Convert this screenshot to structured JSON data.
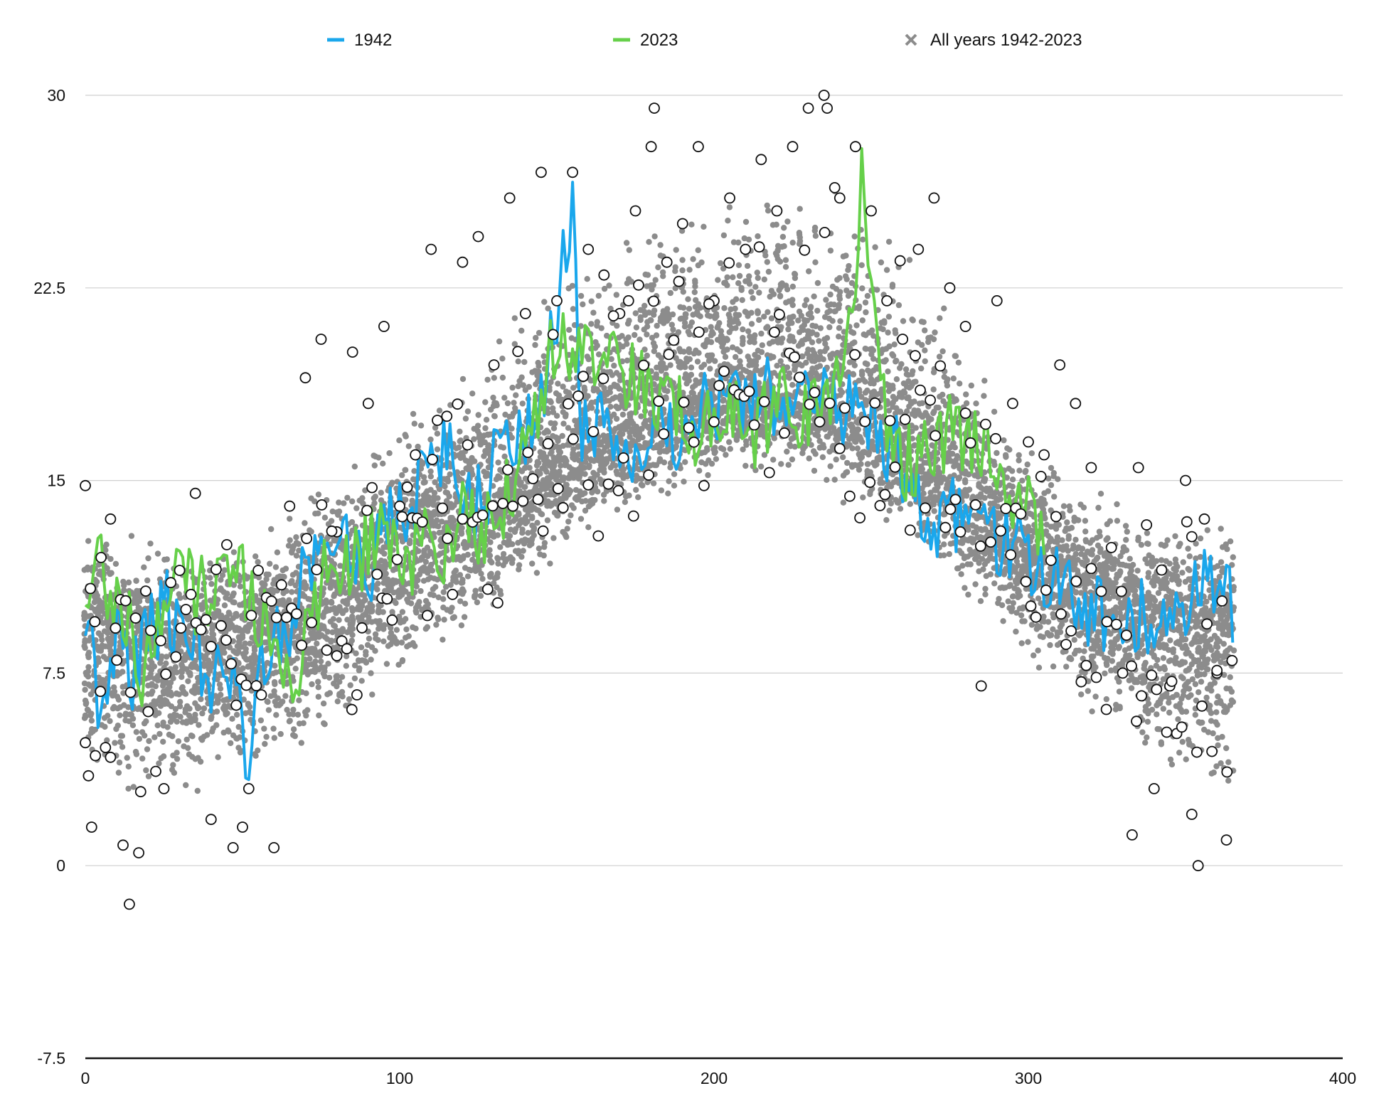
{
  "chart_data": {
    "type": "scatter",
    "title": "",
    "xlabel": "",
    "ylabel": "",
    "xlim": [
      0,
      400
    ],
    "ylim": [
      -7.5,
      30
    ],
    "x_ticks": [
      0,
      100,
      200,
      300,
      400
    ],
    "y_ticks": [
      -7.5,
      0,
      7.5,
      15,
      22.5,
      30
    ],
    "x_tick_labels": [
      "0",
      "100",
      "200",
      "300",
      "400"
    ],
    "y_tick_labels": [
      "-7.5",
      "0",
      "7.5",
      "15",
      "22.5",
      "30"
    ],
    "grid": {
      "horizontal": true,
      "vertical": false
    },
    "legend_position": "top",
    "legend": [
      {
        "label": "1942",
        "marker": "line",
        "color": "#1aa7ec"
      },
      {
        "label": "2023",
        "marker": "line",
        "color": "#66d04a"
      },
      {
        "label": "All years 1942-2023",
        "marker": "x",
        "color": "#8c8c8c"
      }
    ],
    "series": [
      {
        "name": "1942",
        "kind": "line",
        "color": "#1aa7ec",
        "x": [
          0,
          5,
          10,
          15,
          20,
          25,
          30,
          35,
          40,
          45,
          50,
          52,
          55,
          60,
          65,
          70,
          75,
          80,
          85,
          90,
          95,
          100,
          105,
          110,
          115,
          120,
          125,
          130,
          135,
          140,
          145,
          150,
          155,
          158,
          160,
          165,
          170,
          175,
          180,
          185,
          190,
          195,
          200,
          205,
          210,
          215,
          220,
          225,
          230,
          235,
          240,
          245,
          250,
          255,
          260,
          265,
          270,
          275,
          280,
          285,
          290,
          295,
          300,
          305,
          310,
          315,
          320,
          325,
          330,
          335,
          340,
          345,
          350,
          355,
          360,
          365
        ],
        "y": [
          10.0,
          6.0,
          9.0,
          7.5,
          9.0,
          10.0,
          9.5,
          8.5,
          7.5,
          8.0,
          6.5,
          3.0,
          7.5,
          9.0,
          8.5,
          12.0,
          11.5,
          13.0,
          12.5,
          11.0,
          13.0,
          13.5,
          14.5,
          15.5,
          16.0,
          15.0,
          14.0,
          15.5,
          16.5,
          17.0,
          18.5,
          21.0,
          26.5,
          17.0,
          16.5,
          17.0,
          16.5,
          16.0,
          17.5,
          16.5,
          17.0,
          17.5,
          18.0,
          18.0,
          18.5,
          19.0,
          17.0,
          17.0,
          18.5,
          18.0,
          17.5,
          17.5,
          17.0,
          16.5,
          15.5,
          14.5,
          13.5,
          14.0,
          13.5,
          13.0,
          13.0,
          12.5,
          12.0,
          11.0,
          11.0,
          10.5,
          10.0,
          9.5,
          9.0,
          9.5,
          10.0,
          10.5,
          10.0,
          11.0,
          10.5,
          10.0
        ]
      },
      {
        "name": "2023",
        "kind": "line",
        "color": "#66d04a",
        "x": [
          0,
          5,
          10,
          15,
          18,
          20,
          25,
          30,
          35,
          40,
          45,
          50,
          55,
          60,
          65,
          68,
          70,
          75,
          80,
          85,
          90,
          95,
          100,
          105,
          110,
          115,
          120,
          125,
          130,
          135,
          140,
          145,
          150,
          155,
          160,
          165,
          170,
          175,
          180,
          185,
          190,
          195,
          200,
          205,
          210,
          215,
          220,
          225,
          230,
          235,
          240,
          245,
          247,
          250,
          255,
          260,
          265,
          270,
          275,
          280,
          285,
          290,
          295,
          300,
          305
        ],
        "y": [
          11.0,
          12.0,
          10.0,
          9.5,
          6.0,
          8.5,
          10.5,
          11.5,
          10.5,
          11.0,
          12.0,
          11.0,
          10.0,
          9.0,
          8.0,
          5.5,
          9.5,
          11.0,
          11.5,
          12.0,
          12.5,
          13.0,
          12.5,
          12.0,
          13.0,
          12.0,
          13.5,
          13.0,
          14.0,
          14.5,
          16.0,
          18.0,
          21.0,
          20.0,
          19.5,
          19.5,
          19.0,
          19.0,
          18.0,
          17.5,
          17.5,
          17.0,
          18.0,
          17.5,
          17.0,
          17.0,
          18.5,
          17.5,
          17.5,
          18.5,
          19.0,
          21.0,
          27.0,
          22.0,
          17.0,
          15.5,
          16.0,
          16.5,
          17.0,
          17.0,
          16.0,
          15.5,
          14.5,
          14.0,
          13.5
        ]
      },
      {
        "name": "All years 1942-2023",
        "kind": "scatter-cloud",
        "color": "#8c8c8c",
        "x": [
          0,
          20,
          40,
          60,
          80,
          100,
          120,
          140,
          160,
          180,
          200,
          220,
          240,
          260,
          280,
          300,
          320,
          340,
          365
        ],
        "y_low": [
          2.0,
          2.0,
          2.5,
          3.0,
          4.5,
          6.5,
          8.0,
          10.0,
          12.0,
          13.5,
          14.5,
          15.0,
          14.0,
          12.5,
          10.0,
          7.5,
          5.5,
          3.0,
          1.5
        ],
        "y_high": [
          13.5,
          13.0,
          12.5,
          13.5,
          16.0,
          18.0,
          20.0,
          22.5,
          24.0,
          26.0,
          27.0,
          28.0,
          27.0,
          25.0,
          21.0,
          17.5,
          15.0,
          14.0,
          13.5
        ],
        "y_mean": [
          9.0,
          8.5,
          8.5,
          9.0,
          10.5,
          12.0,
          13.5,
          15.0,
          16.5,
          17.5,
          18.5,
          18.5,
          18.0,
          16.5,
          14.5,
          12.0,
          10.5,
          9.5,
          9.0
        ]
      },
      {
        "name": "",
        "kind": "open-circles",
        "color": "#111111",
        "x": [
          0,
          1,
          2,
          3,
          5,
          8,
          10,
          12,
          14,
          17,
          20,
          25,
          30,
          35,
          40,
          45,
          47,
          50,
          52,
          55,
          60,
          65,
          70,
          75,
          80,
          85,
          90,
          95,
          100,
          105,
          110,
          115,
          120,
          125,
          130,
          135,
          140,
          145,
          150,
          155,
          160,
          165,
          170,
          175,
          180,
          181,
          185,
          190,
          195,
          200,
          205,
          210,
          215,
          220,
          225,
          230,
          235,
          236,
          240,
          245,
          250,
          255,
          260,
          265,
          270,
          275,
          280,
          285,
          290,
          295,
          300,
          305,
          310,
          315,
          320,
          325,
          330,
          333,
          335,
          340,
          345,
          350,
          352,
          354,
          356,
          360,
          363
        ],
        "y": [
          14.8,
          3.5,
          1.5,
          9.5,
          12.0,
          13.5,
          8.0,
          0.8,
          -1.5,
          0.5,
          6.0,
          3.0,
          11.5,
          14.5,
          1.8,
          12.5,
          0.7,
          1.5,
          3.0,
          11.5,
          0.7,
          14.0,
          19.0,
          20.5,
          13.0,
          20.0,
          18.0,
          21.0,
          14.0,
          16.0,
          24.0,
          17.5,
          23.5,
          24.5,
          19.5,
          26.0,
          21.5,
          27.0,
          22.0,
          27.0,
          24.0,
          23.0,
          21.5,
          25.5,
          28.0,
          29.5,
          23.5,
          25.0,
          28.0,
          22.0,
          26.0,
          24.0,
          27.5,
          25.5,
          28.0,
          29.5,
          30.0,
          29.5,
          26.0,
          28.0,
          25.5,
          22.0,
          20.5,
          24.0,
          26.0,
          22.5,
          21.0,
          7.0,
          22.0,
          18.0,
          16.5,
          16.0,
          19.5,
          18.0,
          15.5,
          9.5,
          7.5,
          1.2,
          15.5,
          3.0,
          7.0,
          15.0,
          2.0,
          0.0,
          13.5,
          7.5,
          1.0
        ]
      }
    ]
  }
}
